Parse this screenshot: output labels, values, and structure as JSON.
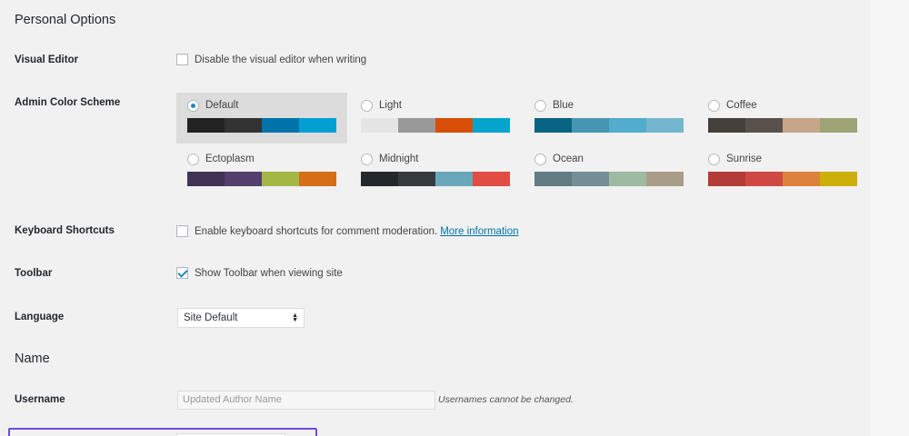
{
  "sections": {
    "personal_options": "Personal Options",
    "name": "Name"
  },
  "visual_editor": {
    "label": "Visual Editor",
    "checkbox_text": "Disable the visual editor when writing",
    "checked": false
  },
  "color_scheme": {
    "label": "Admin Color Scheme",
    "selected": "Default",
    "schemes": [
      {
        "name": "Default",
        "colors": [
          "#222222",
          "#333333",
          "#0073aa",
          "#00a0d2"
        ]
      },
      {
        "name": "Light",
        "colors": [
          "#e5e5e5",
          "#999999",
          "#d64e07",
          "#04a4cc"
        ]
      },
      {
        "name": "Blue",
        "colors": [
          "#096484",
          "#4796b3",
          "#52accc",
          "#74b6ce"
        ]
      },
      {
        "name": "Coffee",
        "colors": [
          "#46403c",
          "#59524c",
          "#c7a589",
          "#9ea476"
        ]
      },
      {
        "name": "Ectoplasm",
        "colors": [
          "#413256",
          "#523f6d",
          "#a3b745",
          "#d46f15"
        ]
      },
      {
        "name": "Midnight",
        "colors": [
          "#25282b",
          "#363b3f",
          "#69a8bb",
          "#e14d43"
        ]
      },
      {
        "name": "Ocean",
        "colors": [
          "#627c83",
          "#738e96",
          "#9ebaa0",
          "#aa9d88"
        ]
      },
      {
        "name": "Sunrise",
        "colors": [
          "#b43c38",
          "#cf4944",
          "#dd823b",
          "#ccaf0b"
        ]
      }
    ]
  },
  "keyboard_shortcuts": {
    "label": "Keyboard Shortcuts",
    "checkbox_text": "Enable keyboard shortcuts for comment moderation.",
    "link_text": "More information",
    "checked": false
  },
  "toolbar": {
    "label": "Toolbar",
    "checkbox_text": "Show Toolbar when viewing site",
    "checked": true
  },
  "language": {
    "label": "Language",
    "value": "Site Default"
  },
  "username": {
    "label": "Username",
    "value": "Updated Author Name",
    "note": "Usernames cannot be changed."
  }
}
